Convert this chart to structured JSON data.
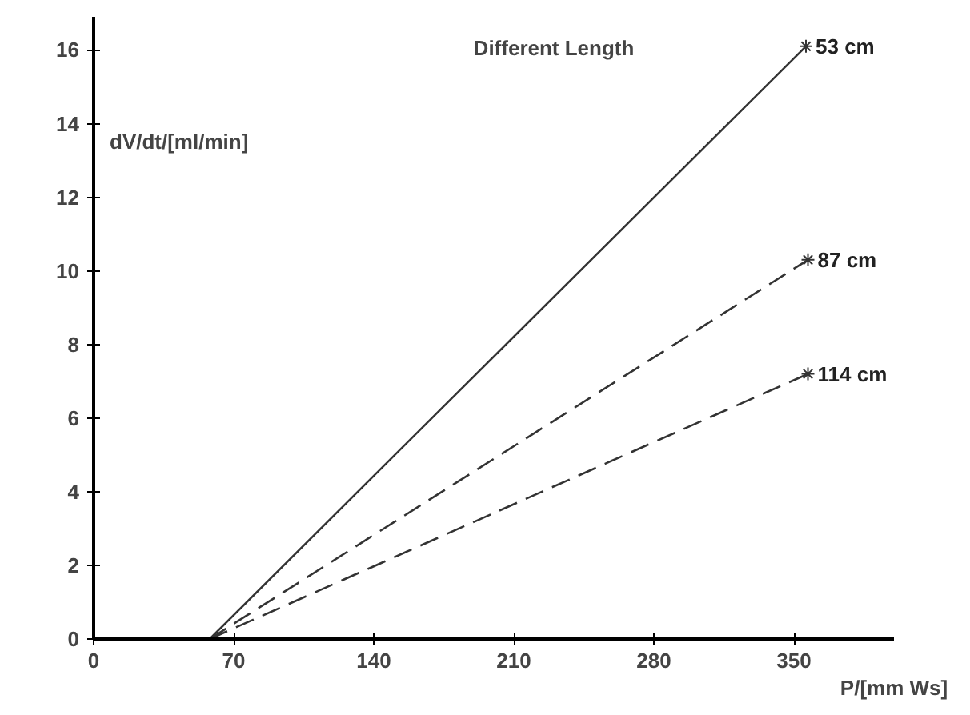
{
  "chart_data": {
    "type": "line",
    "title": "Different Length",
    "xlabel": "P/[mm Ws]",
    "ylabel": "dV/dt/[ml/min]",
    "xlim": [
      0,
      400
    ],
    "ylim": [
      0,
      16.9
    ],
    "xticks": [
      0,
      70,
      140,
      210,
      280,
      350
    ],
    "yticks": [
      0,
      2,
      4,
      6,
      8,
      10,
      12,
      14,
      16
    ],
    "grid": false,
    "marker": "cross",
    "series": [
      {
        "name": "53 cm",
        "color": "#333333",
        "line_style": "solid",
        "x": [
          58,
          356
        ],
        "values": [
          0,
          16.1
        ]
      },
      {
        "name": "87 cm",
        "color": "#333333",
        "line_style": "dashed",
        "x": [
          58,
          357
        ],
        "values": [
          0,
          10.3
        ]
      },
      {
        "name": "114 cm",
        "color": "#333333",
        "line_style": "dashed",
        "x": [
          58,
          357
        ],
        "values": [
          0,
          7.2
        ]
      }
    ]
  }
}
